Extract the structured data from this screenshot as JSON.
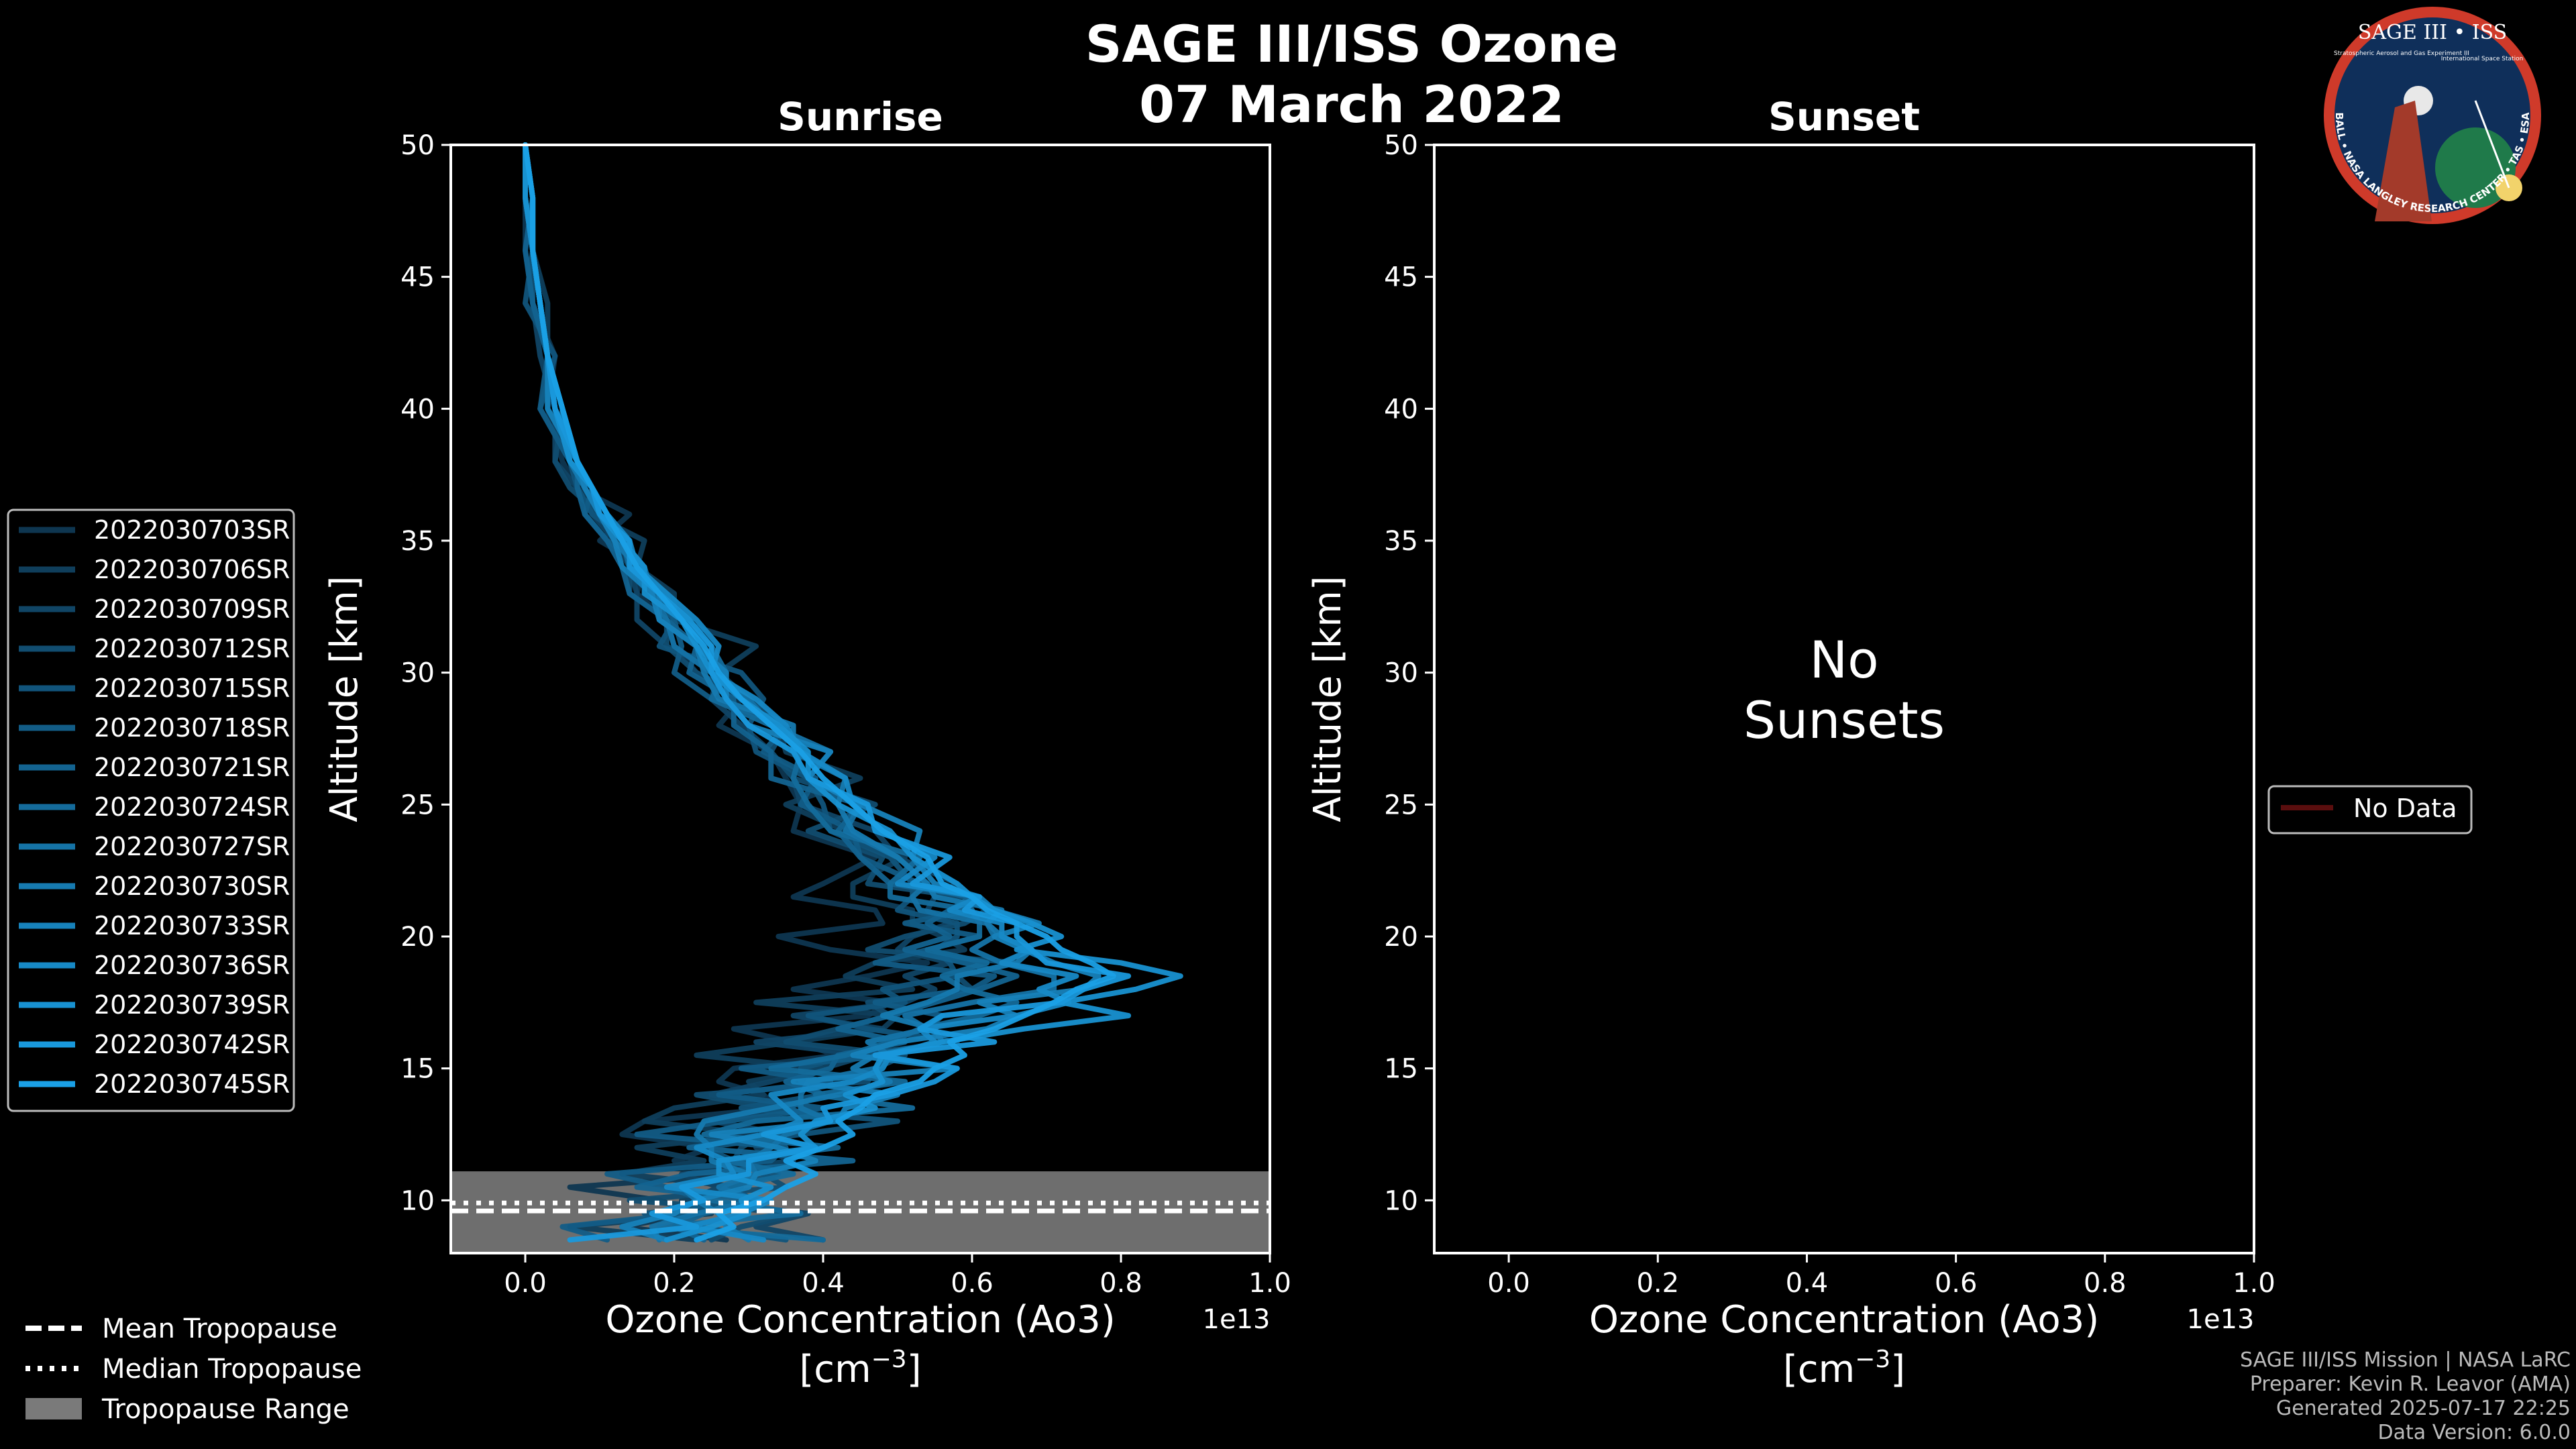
{
  "title": {
    "line1": "SAGE III/ISS Ozone",
    "line2": "07 March 2022"
  },
  "logo": {
    "name": "SAGE III • ISS",
    "subtitle": "Stratospheric Aerosol and Gas Experiment III",
    "station": "International Space Station",
    "ring_text": "BALL • NASA LANGLEY RESEARCH CENTER • TAS • ESA"
  },
  "colors": {
    "background": "#000000",
    "series_dark": "#0e3650",
    "series_light": "#1aa0e6",
    "tropopause_band": "#7a7a7a",
    "no_data": "#5a0e0e"
  },
  "chart_data": [
    {
      "type": "line",
      "panel": "sunrise",
      "title": "Sunrise",
      "xlabel": "Ozone Concentration (Ao3)",
      "xunit_prefix": "[cm",
      "xunit_sup": "−3",
      "xunit_suffix": "]",
      "x_offset_label": "1e13",
      "ylabel": "Altitude [km]",
      "xlim": [
        -0.1,
        1.0
      ],
      "ylim": [
        8,
        50
      ],
      "xticks": [
        0.0,
        0.2,
        0.4,
        0.6,
        0.8,
        1.0
      ],
      "xtick_labels": [
        "0.0",
        "0.2",
        "0.4",
        "0.6",
        "0.8",
        "1.0"
      ],
      "yticks": [
        10,
        15,
        20,
        25,
        30,
        35,
        40,
        45,
        50
      ],
      "ytick_labels": [
        "10",
        "15",
        "20",
        "25",
        "30",
        "35",
        "40",
        "45",
        "50"
      ],
      "legend_position": "outside-left",
      "tropopause": {
        "mean": 9.6,
        "median": 9.9,
        "range": [
          8.0,
          11.1
        ]
      },
      "altitudes": [
        8.5,
        9.0,
        9.5,
        10.0,
        10.5,
        11.0,
        11.5,
        12.0,
        12.5,
        13.0,
        13.5,
        14.0,
        14.5,
        15.0,
        15.5,
        16.0,
        16.5,
        17.0,
        17.5,
        18.0,
        18.5,
        19.0,
        19.5,
        20.0,
        20.5,
        21.0,
        21.5,
        22.0,
        23.0,
        24.0,
        25.0,
        26.0,
        27.0,
        28.0,
        29.0,
        30.0,
        31.0,
        32.0,
        33.0,
        34.0,
        35.0,
        36.0,
        37.0,
        38.0,
        40.0,
        42.0,
        44.0,
        46.0,
        48.0,
        50.0
      ],
      "series": [
        {
          "name": "2022030703SR",
          "values": [
            0.27,
            0.13,
            0.23,
            0.18,
            0.06,
            0.3,
            0.2,
            0.25,
            0.13,
            0.16,
            0.34,
            0.32,
            0.26,
            0.28,
            0.42,
            0.36,
            0.28,
            0.46,
            0.49,
            0.36,
            0.46,
            0.54,
            0.41,
            0.34,
            0.48,
            0.47,
            0.36,
            0.4,
            0.47,
            0.36,
            0.37,
            0.35,
            0.33,
            0.26,
            0.29,
            0.23,
            0.2,
            0.19,
            0.15,
            0.16,
            0.1,
            0.14,
            0.07,
            0.05,
            0.03,
            0.04,
            0.01,
            0.0,
            0.0,
            0.0
          ]
        },
        {
          "name": "2022030706SR",
          "values": [
            0.23,
            0.06,
            0.25,
            0.21,
            0.29,
            0.13,
            0.24,
            0.15,
            0.31,
            0.16,
            0.2,
            0.32,
            0.3,
            0.4,
            0.23,
            0.36,
            0.48,
            0.5,
            0.31,
            0.52,
            0.43,
            0.47,
            0.59,
            0.56,
            0.52,
            0.52,
            0.44,
            0.44,
            0.51,
            0.43,
            0.35,
            0.45,
            0.35,
            0.34,
            0.3,
            0.26,
            0.31,
            0.2,
            0.2,
            0.15,
            0.16,
            0.09,
            0.08,
            0.06,
            0.05,
            0.03,
            0.03,
            0.01,
            0.0,
            0.0
          ]
        },
        {
          "name": "2022030709SR",
          "values": [
            0.4,
            0.31,
            0.38,
            0.22,
            0.26,
            0.21,
            0.36,
            0.31,
            0.35,
            0.25,
            0.36,
            0.25,
            0.33,
            0.4,
            0.46,
            0.31,
            0.48,
            0.36,
            0.51,
            0.55,
            0.51,
            0.57,
            0.5,
            0.52,
            0.57,
            0.54,
            0.55,
            0.58,
            0.5,
            0.47,
            0.37,
            0.36,
            0.33,
            0.29,
            0.25,
            0.26,
            0.19,
            0.15,
            0.15,
            0.14,
            0.12,
            0.09,
            0.07,
            0.04,
            0.04,
            0.02,
            0.01,
            0.01,
            0.0,
            0.0
          ]
        },
        {
          "name": "2022030712SR",
          "values": [
            0.25,
            0.29,
            0.37,
            0.14,
            0.35,
            0.32,
            0.28,
            0.29,
            0.32,
            0.41,
            0.33,
            0.23,
            0.46,
            0.47,
            0.51,
            0.35,
            0.42,
            0.49,
            0.46,
            0.6,
            0.58,
            0.66,
            0.46,
            0.51,
            0.59,
            0.62,
            0.59,
            0.46,
            0.48,
            0.38,
            0.47,
            0.36,
            0.33,
            0.35,
            0.3,
            0.23,
            0.19,
            0.19,
            0.14,
            0.14,
            0.14,
            0.1,
            0.06,
            0.04,
            0.05,
            0.03,
            0.01,
            0.01,
            0.0,
            0.0
          ]
        },
        {
          "name": "2022030715SR",
          "values": [
            0.35,
            0.23,
            0.16,
            0.31,
            0.27,
            0.34,
            0.28,
            0.24,
            0.37,
            0.5,
            0.29,
            0.4,
            0.37,
            0.37,
            0.44,
            0.58,
            0.46,
            0.38,
            0.51,
            0.48,
            0.58,
            0.57,
            0.55,
            0.58,
            0.58,
            0.5,
            0.52,
            0.52,
            0.49,
            0.41,
            0.4,
            0.38,
            0.31,
            0.3,
            0.32,
            0.29,
            0.18,
            0.2,
            0.19,
            0.14,
            0.14,
            0.09,
            0.07,
            0.06,
            0.02,
            0.04,
            0.0,
            0.01,
            0.01,
            0.0
          ]
        },
        {
          "name": "2022030718SR",
          "values": [
            0.11,
            0.05,
            0.22,
            0.24,
            0.19,
            0.11,
            0.33,
            0.35,
            0.15,
            0.27,
            0.4,
            0.26,
            0.41,
            0.29,
            0.5,
            0.46,
            0.54,
            0.56,
            0.47,
            0.6,
            0.63,
            0.47,
            0.54,
            0.61,
            0.51,
            0.6,
            0.59,
            0.53,
            0.45,
            0.44,
            0.37,
            0.39,
            0.32,
            0.35,
            0.25,
            0.2,
            0.21,
            0.2,
            0.17,
            0.16,
            0.11,
            0.08,
            0.09,
            0.06,
            0.02,
            0.03,
            0.02,
            0.01,
            0.01,
            0.0
          ]
        },
        {
          "name": "2022030721SR",
          "values": [
            0.24,
            0.2,
            0.24,
            0.31,
            0.15,
            0.22,
            0.44,
            0.22,
            0.34,
            0.41,
            0.35,
            0.4,
            0.35,
            0.41,
            0.42,
            0.51,
            0.42,
            0.49,
            0.55,
            0.61,
            0.66,
            0.59,
            0.51,
            0.57,
            0.54,
            0.57,
            0.6,
            0.49,
            0.45,
            0.42,
            0.45,
            0.33,
            0.33,
            0.28,
            0.28,
            0.22,
            0.23,
            0.19,
            0.14,
            0.13,
            0.11,
            0.08,
            0.07,
            0.07,
            0.03,
            0.03,
            0.01,
            0.0,
            0.01,
            0.0
          ]
        },
        {
          "name": "2022030724SR",
          "values": [
            0.4,
            0.18,
            0.37,
            0.25,
            0.27,
            0.36,
            0.27,
            0.42,
            0.24,
            0.31,
            0.52,
            0.39,
            0.51,
            0.33,
            0.43,
            0.49,
            0.53,
            0.61,
            0.66,
            0.59,
            0.56,
            0.62,
            0.54,
            0.61,
            0.61,
            0.6,
            0.49,
            0.49,
            0.53,
            0.41,
            0.38,
            0.36,
            0.37,
            0.33,
            0.25,
            0.27,
            0.25,
            0.21,
            0.17,
            0.14,
            0.13,
            0.11,
            0.09,
            0.06,
            0.04,
            0.03,
            0.02,
            0.01,
            0.01,
            0.0
          ]
        },
        {
          "name": "2022030727SR",
          "values": [
            0.18,
            0.17,
            0.23,
            0.31,
            0.26,
            0.31,
            0.3,
            0.33,
            0.35,
            0.41,
            0.37,
            0.37,
            0.38,
            0.47,
            0.49,
            0.46,
            0.54,
            0.51,
            0.6,
            0.71,
            0.71,
            0.64,
            0.6,
            0.63,
            0.62,
            0.53,
            0.52,
            0.54,
            0.5,
            0.43,
            0.45,
            0.38,
            0.41,
            0.33,
            0.3,
            0.25,
            0.2,
            0.19,
            0.17,
            0.16,
            0.13,
            0.1,
            0.08,
            0.07,
            0.04,
            0.03,
            0.02,
            0.01,
            0.01,
            0.0
          ]
        },
        {
          "name": "2022030730SR",
          "values": [
            0.3,
            0.27,
            0.26,
            0.23,
            0.21,
            0.3,
            0.25,
            0.25,
            0.23,
            0.24,
            0.33,
            0.42,
            0.49,
            0.44,
            0.47,
            0.56,
            0.55,
            0.48,
            0.54,
            0.58,
            0.58,
            0.66,
            0.68,
            0.64,
            0.62,
            0.64,
            0.55,
            0.54,
            0.5,
            0.44,
            0.42,
            0.43,
            0.36,
            0.36,
            0.26,
            0.24,
            0.23,
            0.18,
            0.18,
            0.15,
            0.12,
            0.1,
            0.08,
            0.06,
            0.05,
            0.03,
            0.02,
            0.01,
            0.0,
            0.0
          ]
        },
        {
          "name": "2022030733SR",
          "values": [
            0.19,
            0.13,
            0.2,
            0.23,
            0.3,
            0.31,
            0.39,
            0.34,
            0.25,
            0.42,
            0.43,
            0.5,
            0.36,
            0.58,
            0.44,
            0.5,
            0.62,
            0.66,
            0.61,
            0.75,
            0.77,
            0.71,
            0.67,
            0.63,
            0.69,
            0.63,
            0.61,
            0.55,
            0.52,
            0.53,
            0.45,
            0.38,
            0.41,
            0.3,
            0.27,
            0.27,
            0.23,
            0.18,
            0.17,
            0.13,
            0.12,
            0.1,
            0.08,
            0.07,
            0.03,
            0.03,
            0.02,
            0.01,
            0.01,
            0.0
          ]
        },
        {
          "name": "2022030736SR",
          "values": [
            0.32,
            0.22,
            0.29,
            0.33,
            0.19,
            0.28,
            0.27,
            0.23,
            0.32,
            0.37,
            0.35,
            0.33,
            0.44,
            0.48,
            0.49,
            0.55,
            0.53,
            0.66,
            0.73,
            0.69,
            0.74,
            0.64,
            0.68,
            0.64,
            0.64,
            0.57,
            0.61,
            0.5,
            0.55,
            0.48,
            0.44,
            0.43,
            0.37,
            0.35,
            0.31,
            0.25,
            0.26,
            0.23,
            0.19,
            0.15,
            0.14,
            0.11,
            0.09,
            0.07,
            0.05,
            0.03,
            0.02,
            0.01,
            0.0,
            0.0
          ]
        },
        {
          "name": "2022030739SR",
          "values": [
            0.19,
            0.25,
            0.3,
            0.29,
            0.33,
            0.26,
            0.26,
            0.39,
            0.37,
            0.39,
            0.47,
            0.43,
            0.48,
            0.47,
            0.48,
            0.56,
            0.67,
            0.81,
            0.72,
            0.82,
            0.88,
            0.8,
            0.66,
            0.72,
            0.68,
            0.63,
            0.6,
            0.58,
            0.52,
            0.49,
            0.42,
            0.38,
            0.38,
            0.34,
            0.29,
            0.25,
            0.23,
            0.21,
            0.16,
            0.16,
            0.13,
            0.1,
            0.09,
            0.06,
            0.04,
            0.03,
            0.02,
            0.01,
            0.0,
            0.0
          ]
        },
        {
          "name": "2022030742SR",
          "values": [
            0.06,
            0.23,
            0.17,
            0.24,
            0.21,
            0.3,
            0.3,
            0.39,
            0.32,
            0.41,
            0.4,
            0.49,
            0.55,
            0.58,
            0.47,
            0.63,
            0.53,
            0.56,
            0.72,
            0.75,
            0.81,
            0.7,
            0.68,
            0.66,
            0.66,
            0.59,
            0.61,
            0.52,
            0.57,
            0.47,
            0.46,
            0.38,
            0.36,
            0.3,
            0.27,
            0.25,
            0.25,
            0.22,
            0.18,
            0.14,
            0.14,
            0.1,
            0.09,
            0.07,
            0.04,
            0.03,
            0.02,
            0.01,
            0.01,
            0.0
          ]
        },
        {
          "name": "2022030745SR",
          "values": [
            0.23,
            0.28,
            0.26,
            0.32,
            0.35,
            0.39,
            0.35,
            0.4,
            0.44,
            0.42,
            0.45,
            0.47,
            0.53,
            0.55,
            0.59,
            0.57,
            0.63,
            0.67,
            0.71,
            0.74,
            0.79,
            0.76,
            0.72,
            0.7,
            0.66,
            0.62,
            0.6,
            0.56,
            0.54,
            0.48,
            0.44,
            0.4,
            0.37,
            0.33,
            0.29,
            0.26,
            0.24,
            0.21,
            0.18,
            0.15,
            0.13,
            0.11,
            0.09,
            0.07,
            0.05,
            0.03,
            0.02,
            0.01,
            0.01,
            0.0
          ]
        }
      ]
    },
    {
      "type": "line",
      "panel": "sunset",
      "title": "Sunset",
      "xlabel": "Ozone Concentration (Ao3)",
      "xunit_prefix": "[cm",
      "xunit_sup": "−3",
      "xunit_suffix": "]",
      "x_offset_label": "1e13",
      "ylabel": "Altitude [km]",
      "xlim": [
        -0.1,
        1.0
      ],
      "ylim": [
        8,
        50
      ],
      "xticks": [
        0.0,
        0.2,
        0.4,
        0.6,
        0.8,
        1.0
      ],
      "xtick_labels": [
        "0.0",
        "0.2",
        "0.4",
        "0.6",
        "0.8",
        "1.0"
      ],
      "yticks": [
        10,
        15,
        20,
        25,
        30,
        35,
        40,
        45,
        50
      ],
      "ytick_labels": [
        "10",
        "15",
        "20",
        "25",
        "30",
        "35",
        "40",
        "45",
        "50"
      ],
      "annotation_line1": "No",
      "annotation_line2": "Sunsets",
      "legend_position": "outside-right",
      "legend_label": "No Data",
      "series": []
    }
  ],
  "tropopause_legend": [
    {
      "style": "dashed",
      "label": "Mean Tropopause"
    },
    {
      "style": "dotted",
      "label": "Median Tropopause"
    },
    {
      "style": "band",
      "label": "Tropopause Range"
    }
  ],
  "footer": {
    "mission": "SAGE III/ISS Mission | NASA LaRC",
    "preparer": "Preparer: Kevin R. Leavor (AMA)",
    "generated": "Generated 2025-07-17 22:25",
    "version": "Data Version: 6.0.0"
  }
}
